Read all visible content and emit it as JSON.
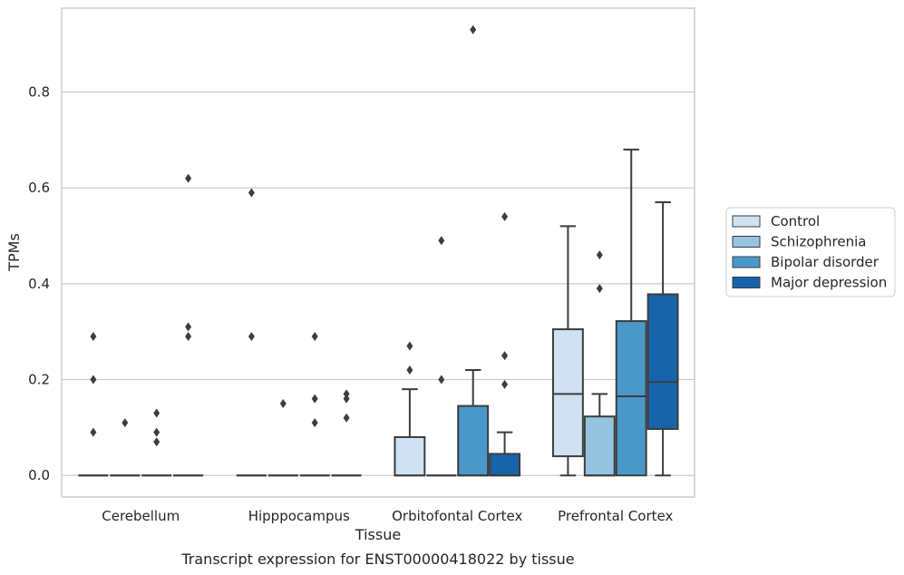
{
  "chart_data": {
    "type": "box",
    "caption": "Transcript expression for ENST00000418022 by tissue",
    "xlabel": "Tissue",
    "ylabel": "TPMs",
    "ylim": [
      -0.045,
      0.975
    ],
    "yticks": [
      0.0,
      0.2,
      0.4,
      0.6,
      0.8
    ],
    "ytick_labels": [
      "0.0",
      "0.2",
      "0.4",
      "0.6",
      "0.8"
    ],
    "categories": [
      "Cerebellum",
      "Hipppocampus",
      "Orbitofontal Cortex",
      "Prefrontal Cortex"
    ],
    "grid": "horizontal",
    "legend_position": "right",
    "series": [
      {
        "name": "Control",
        "color": "#d0e1f2",
        "boxes": [
          {
            "whislo": 0,
            "q1": 0,
            "med": 0,
            "q3": 0,
            "whishi": 0,
            "fliers": [
              0.29,
              0.2,
              0.09
            ]
          },
          {
            "whislo": 0,
            "q1": 0,
            "med": 0,
            "q3": 0,
            "whishi": 0,
            "fliers": [
              0.59,
              0.29
            ]
          },
          {
            "whislo": 0,
            "q1": 0,
            "med": 0,
            "q3": 0.08,
            "whishi": 0.18,
            "fliers": [
              0.27,
              0.22
            ]
          },
          {
            "whislo": 0,
            "q1": 0.04,
            "med": 0.17,
            "q3": 0.305,
            "whishi": 0.52,
            "fliers": []
          }
        ]
      },
      {
        "name": "Schizophrenia",
        "color": "#94c4df",
        "boxes": [
          {
            "whislo": 0,
            "q1": 0,
            "med": 0,
            "q3": 0,
            "whishi": 0,
            "fliers": [
              0.11
            ]
          },
          {
            "whislo": 0,
            "q1": 0,
            "med": 0,
            "q3": 0,
            "whishi": 0,
            "fliers": [
              0.15
            ]
          },
          {
            "whislo": 0,
            "q1": 0,
            "med": 0,
            "q3": 0,
            "whishi": 0,
            "fliers": [
              0.49,
              0.2
            ]
          },
          {
            "whislo": 0,
            "q1": 0,
            "med": 0,
            "q3": 0.123,
            "whishi": 0.17,
            "fliers": [
              0.46,
              0.39
            ]
          }
        ]
      },
      {
        "name": "Bipolar disorder",
        "color": "#4a98c9",
        "boxes": [
          {
            "whislo": 0,
            "q1": 0,
            "med": 0,
            "q3": 0,
            "whishi": 0,
            "fliers": [
              0.13,
              0.09,
              0.07
            ]
          },
          {
            "whislo": 0,
            "q1": 0,
            "med": 0,
            "q3": 0,
            "whishi": 0,
            "fliers": [
              0.29,
              0.16,
              0.11
            ]
          },
          {
            "whislo": 0,
            "q1": 0,
            "med": 0,
            "q3": 0.145,
            "whishi": 0.22,
            "fliers": [
              0.93
            ]
          },
          {
            "whislo": 0,
            "q1": 0,
            "med": 0.165,
            "q3": 0.322,
            "whishi": 0.68,
            "fliers": []
          }
        ]
      },
      {
        "name": "Major depression",
        "color": "#1764ab",
        "boxes": [
          {
            "whislo": 0,
            "q1": 0,
            "med": 0,
            "q3": 0,
            "whishi": 0,
            "fliers": [
              0.62,
              0.31,
              0.29
            ]
          },
          {
            "whislo": 0,
            "q1": 0,
            "med": 0,
            "q3": 0,
            "whishi": 0,
            "fliers": [
              0.17,
              0.16,
              0.12
            ]
          },
          {
            "whislo": 0,
            "q1": 0,
            "med": 0,
            "q3": 0.045,
            "whishi": 0.09,
            "fliers": [
              0.54,
              0.25,
              0.19
            ]
          },
          {
            "whislo": 0,
            "q1": 0.097,
            "med": 0.195,
            "q3": 0.378,
            "whishi": 0.57,
            "fliers": []
          }
        ]
      }
    ]
  }
}
